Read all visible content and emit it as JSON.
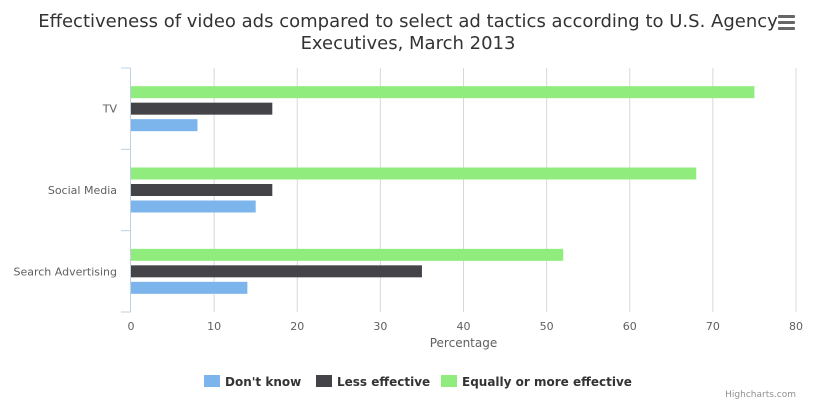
{
  "chart_data": {
    "type": "bar",
    "orientation": "horizontal",
    "title_lines": [
      "Effectiveness of video ads compared to select ad tactics according to U.S. Agency",
      "Executives, March 2013"
    ],
    "categories": [
      "TV",
      "Social Media",
      "Search Advertising"
    ],
    "series": [
      {
        "name": "Equally or more effective",
        "color": "#90ed7d",
        "values": [
          75,
          68,
          52
        ]
      },
      {
        "name": "Less effective",
        "color": "#434348",
        "values": [
          17,
          17,
          35
        ]
      },
      {
        "name": "Don't know",
        "color": "#7cb5ec",
        "values": [
          8,
          15,
          14
        ]
      }
    ],
    "legend_order": [
      "Don't know",
      "Less effective",
      "Equally or more effective"
    ],
    "xlabel": "Percentage",
    "xlim": [
      0,
      80
    ],
    "xticks": [
      0,
      10,
      20,
      30,
      40,
      50,
      60,
      70,
      80
    ],
    "grid": true,
    "legend_position": "bottom-center"
  },
  "menu_icon": "hamburger-menu-icon",
  "credits": "Highcharts.com"
}
